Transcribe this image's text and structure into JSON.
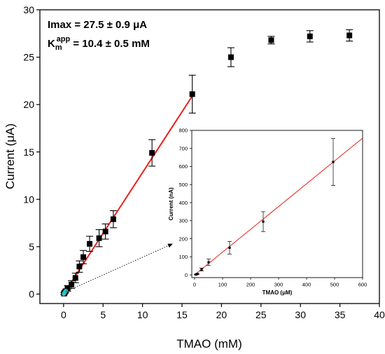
{
  "chart_data": [
    {
      "type": "scatter",
      "xlabel": "TMAO (mM)",
      "ylabel": "Current (μA)",
      "xlim": [
        -3,
        40
      ],
      "ylim": [
        -1,
        30
      ],
      "x_ticks": [
        0,
        5,
        10,
        15,
        20,
        25,
        30,
        35,
        40
      ],
      "y_ticks": [
        0,
        5,
        10,
        15,
        20,
        25,
        30
      ],
      "annotation_imax": "Imax = 27.5 ± 0.9 μA",
      "annotation_km_prefix": "K",
      "annotation_km_sub": "m",
      "annotation_km_sup": "app",
      "annotation_km_value": " = 10.4 ± 0.5 mM",
      "series": [
        {
          "marker": "square",
          "color": "#000000",
          "x": [
            0.05,
            0.1,
            0.25,
            0.5,
            1.0,
            1.5,
            2.0,
            2.5,
            3.3,
            4.5,
            5.3,
            6.3,
            11.2,
            16.3,
            21.2,
            26.3,
            31.2,
            36.2
          ],
          "y": [
            0.05,
            0.1,
            0.3,
            0.6,
            1.0,
            1.7,
            2.9,
            3.9,
            5.3,
            5.9,
            6.6,
            7.9,
            14.9,
            21.1,
            25.0,
            26.8,
            27.2,
            27.3
          ],
          "error": [
            0.1,
            0.1,
            0.15,
            0.3,
            0.4,
            0.5,
            0.6,
            0.7,
            0.8,
            0.9,
            0.8,
            0.9,
            1.4,
            2.0,
            1.0,
            0.4,
            0.6,
            0.6
          ]
        },
        {
          "name": "highlight",
          "marker": "circle",
          "color": "#29c5c9",
          "x": [
            0.02,
            0.05,
            0.08,
            0.12,
            0.16,
            0.2,
            0.25,
            0.3
          ],
          "y": [
            0.0,
            0.05,
            0.1,
            0.15,
            0.2,
            0.25,
            0.3,
            0.35
          ]
        }
      ],
      "fit_line": {
        "color": "#e8201c",
        "x": [
          0,
          16.3
        ],
        "y": [
          0,
          20.9
        ]
      }
    },
    {
      "type": "scatter",
      "inset": true,
      "xlabel": "TMAO (μM)",
      "ylabel": "Current (nA)",
      "xlim": [
        -10,
        600
      ],
      "ylim": [
        -15,
        800
      ],
      "x_ticks": [
        0,
        100,
        200,
        300,
        400,
        500,
        600
      ],
      "y_ticks": [
        0,
        100,
        200,
        300,
        400,
        500,
        600,
        700,
        800
      ],
      "series": [
        {
          "marker": "square",
          "color": "#000000",
          "x": [
            5,
            10,
            25,
            50,
            125,
            245,
            495
          ],
          "y": [
            2,
            5,
            30,
            70,
            150,
            295,
            625
          ],
          "error": [
            2,
            3,
            8,
            18,
            35,
            55,
            130
          ]
        }
      ],
      "fit_line": {
        "color": "#e8201c",
        "x": [
          0,
          600
        ],
        "y": [
          0,
          757
        ]
      }
    }
  ]
}
